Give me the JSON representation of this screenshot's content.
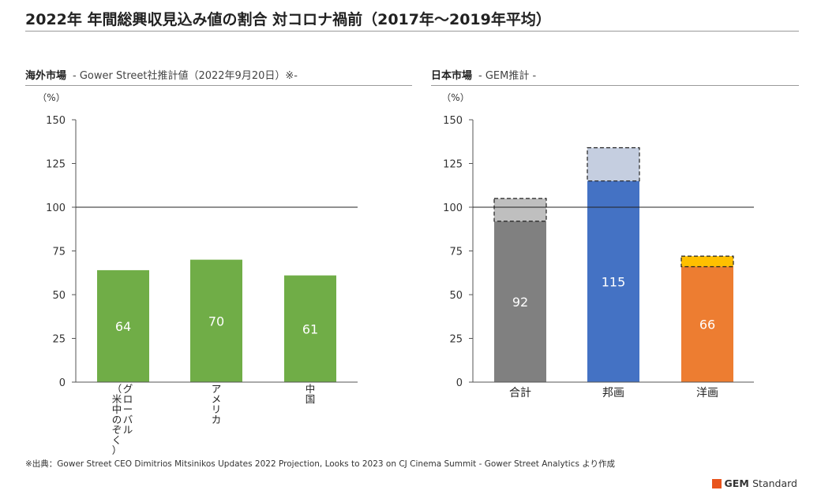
{
  "title": "2022年 年間総興収見込み値の割合 対コロナ禍前（2017年～2019年平均）",
  "footer": "※出典：Gower Street CEO Dimitrios Mitsinikos Updates 2022 Projection, Looks to 2023 on CJ Cinema Summit - Gower Street Analytics より作成",
  "brand": {
    "name": "GEM",
    "suffix": "Standard"
  },
  "colors": {
    "green": "#70ad47",
    "gray": "#808080",
    "gray_light": "#bfbfbf",
    "blue": "#4472c4",
    "blue_light": "#c5cee0",
    "orange": "#ed7d31",
    "yellow": "#ffc000"
  },
  "chart_data": [
    {
      "type": "bar",
      "panel_title": "海外市場",
      "panel_subtitle": "- Gower Street社推計値（2022年9月20日）※-",
      "unit_label": "（%）",
      "categories": [
        "グローバル（米中のぞく）",
        "アメリカ",
        "中国"
      ],
      "values": [
        64,
        70,
        61
      ],
      "value_labels": [
        "64",
        "70",
        "61"
      ],
      "ylim": [
        0,
        150
      ],
      "yticks": [
        0,
        25,
        50,
        75,
        100,
        125,
        150
      ],
      "reference_line": 100,
      "category_label_orientation": "vertical"
    },
    {
      "type": "bar",
      "panel_title": "日本市場",
      "panel_subtitle": "- GEM推計 -",
      "unit_label": "（%）",
      "categories": [
        "合計",
        "邦画",
        "洋画"
      ],
      "series": [
        {
          "values": [
            92,
            115,
            66
          ]
        },
        {
          "values": [
            13,
            19,
            6
          ]
        }
      ],
      "value_labels": [
        "92",
        "115",
        "66"
      ],
      "ylim": [
        0,
        150
      ],
      "yticks": [
        0,
        25,
        50,
        75,
        100,
        125,
        150
      ],
      "reference_line": 100,
      "category_label_orientation": "horizontal"
    }
  ]
}
